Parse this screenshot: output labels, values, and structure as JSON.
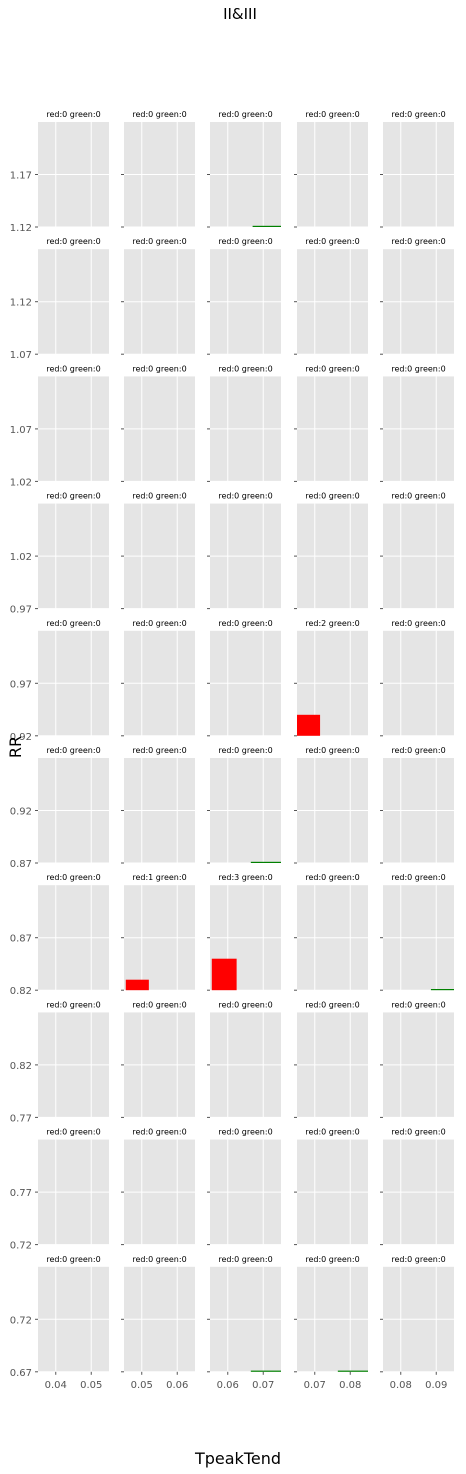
{
  "figure": {
    "suptitle": "II&III",
    "xlabel": "TpeakTend",
    "ylabel": "RR"
  },
  "colors": {
    "panel_bg": "#e5e5e5",
    "grid": "#ffffff",
    "tick_text": "#555555",
    "red": "#ff0000",
    "green": "#008000"
  },
  "chart_data": {
    "type": "bar",
    "layout": {
      "rows": 10,
      "cols": 5
    },
    "grid": true,
    "columns": [
      {
        "xlim": [
          0.035,
          0.055
        ],
        "xticks": [
          0.04,
          0.05
        ],
        "xticklabels": [
          "0.04",
          "0.05"
        ]
      },
      {
        "xlim": [
          0.045,
          0.065
        ],
        "xticks": [
          0.05,
          0.06
        ],
        "xticklabels": [
          "0.05",
          "0.06"
        ]
      },
      {
        "xlim": [
          0.055,
          0.075
        ],
        "xticks": [
          0.06,
          0.07
        ],
        "xticklabels": [
          "0.06",
          "0.07"
        ]
      },
      {
        "xlim": [
          0.065,
          0.085
        ],
        "xticks": [
          0.07,
          0.08
        ],
        "xticklabels": [
          "0.07",
          "0.08"
        ]
      },
      {
        "xlim": [
          0.075,
          0.095
        ],
        "xticks": [
          0.08,
          0.09
        ],
        "xticklabels": [
          "0.08",
          "0.09"
        ]
      }
    ],
    "rows": [
      {
        "ylim": [
          1.12,
          1.22
        ],
        "yticks": [
          1.12,
          1.17
        ],
        "yticklabels": [
          "1.12",
          "1.17"
        ]
      },
      {
        "ylim": [
          1.07,
          1.17
        ],
        "yticks": [
          1.07,
          1.12
        ],
        "yticklabels": [
          "1.07",
          "1.12"
        ]
      },
      {
        "ylim": [
          1.02,
          1.12
        ],
        "yticks": [
          1.02,
          1.07
        ],
        "yticklabels": [
          "1.02",
          "1.07"
        ]
      },
      {
        "ylim": [
          0.97,
          1.07
        ],
        "yticks": [
          0.97,
          1.02
        ],
        "yticklabels": [
          "0.97",
          "1.02"
        ]
      },
      {
        "ylim": [
          0.92,
          1.02
        ],
        "yticks": [
          0.92,
          0.97
        ],
        "yticklabels": [
          "0.92",
          "0.97"
        ]
      },
      {
        "ylim": [
          0.87,
          0.97
        ],
        "yticks": [
          0.87,
          0.92
        ],
        "yticklabels": [
          "0.87",
          "0.92"
        ]
      },
      {
        "ylim": [
          0.82,
          0.92
        ],
        "yticks": [
          0.82,
          0.87
        ],
        "yticklabels": [
          "0.82",
          "0.87"
        ]
      },
      {
        "ylim": [
          0.77,
          0.87
        ],
        "yticks": [
          0.77,
          0.82
        ],
        "yticklabels": [
          "0.77",
          "0.82"
        ]
      },
      {
        "ylim": [
          0.72,
          0.82
        ],
        "yticks": [
          0.72,
          0.77
        ],
        "yticklabels": [
          "0.72",
          "0.77"
        ]
      },
      {
        "ylim": [
          0.67,
          0.77
        ],
        "yticks": [
          0.67,
          0.72
        ],
        "yticklabels": [
          "0.67",
          "0.72"
        ]
      }
    ],
    "panels": [
      [
        {
          "title": "red:0 green:0"
        },
        {
          "title": "red:0 green:0"
        },
        {
          "title": "red:0 green:0",
          "green_bar": {
            "x0": 0.067,
            "x1": 0.075,
            "y0": 1.12,
            "y1": 1.121
          }
        },
        {
          "title": "red:0 green:0"
        },
        {
          "title": "red:0 green:0"
        }
      ],
      [
        {
          "title": "red:0 green:0"
        },
        {
          "title": "red:0 green:0"
        },
        {
          "title": "red:0 green:0"
        },
        {
          "title": "red:0 green:0"
        },
        {
          "title": "red:0 green:0"
        }
      ],
      [
        {
          "title": "red:0 green:0"
        },
        {
          "title": "red:0 green:0"
        },
        {
          "title": "red:0 green:0"
        },
        {
          "title": "red:0 green:0"
        },
        {
          "title": "red:0 green:0"
        }
      ],
      [
        {
          "title": "red:0 green:0"
        },
        {
          "title": "red:0 green:0"
        },
        {
          "title": "red:0 green:0"
        },
        {
          "title": "red:0 green:0"
        },
        {
          "title": "red:0 green:0"
        }
      ],
      [
        {
          "title": "red:0 green:0"
        },
        {
          "title": "red:0 green:0"
        },
        {
          "title": "red:0 green:0"
        },
        {
          "title": "red:2 green:0",
          "red_bar": {
            "x0": 0.065,
            "x1": 0.0715,
            "y0": 0.92,
            "y1": 0.94
          }
        },
        {
          "title": "red:0 green:0"
        }
      ],
      [
        {
          "title": "red:0 green:0"
        },
        {
          "title": "red:0 green:0"
        },
        {
          "title": "red:0 green:0",
          "green_bar": {
            "x0": 0.0665,
            "x1": 0.075,
            "y0": 0.87,
            "y1": 0.871
          }
        },
        {
          "title": "red:0 green:0"
        },
        {
          "title": "red:0 green:0"
        }
      ],
      [
        {
          "title": "red:0 green:0"
        },
        {
          "title": "red:1 green:0",
          "red_bar": {
            "x0": 0.0455,
            "x1": 0.052,
            "y0": 0.82,
            "y1": 0.83
          }
        },
        {
          "title": "red:3 green:0",
          "red_bar": {
            "x0": 0.0555,
            "x1": 0.0625,
            "y0": 0.82,
            "y1": 0.85
          }
        },
        {
          "title": "red:0 green:0"
        },
        {
          "title": "red:0 green:0",
          "green_bar": {
            "x0": 0.0885,
            "x1": 0.095,
            "y0": 0.82,
            "y1": 0.821
          }
        }
      ],
      [
        {
          "title": "red:0 green:0"
        },
        {
          "title": "red:0 green:0"
        },
        {
          "title": "red:0 green:0"
        },
        {
          "title": "red:0 green:0"
        },
        {
          "title": "red:0 green:0"
        }
      ],
      [
        {
          "title": "red:0 green:0"
        },
        {
          "title": "red:0 green:0"
        },
        {
          "title": "red:0 green:0"
        },
        {
          "title": "red:0 green:0"
        },
        {
          "title": "red:0 green:0"
        }
      ],
      [
        {
          "title": "red:0 green:0"
        },
        {
          "title": "red:0 green:0"
        },
        {
          "title": "red:0 green:0",
          "green_bar": {
            "x0": 0.0665,
            "x1": 0.075,
            "y0": 0.67,
            "y1": 0.671
          }
        },
        {
          "title": "red:0 green:0",
          "green_bar": {
            "x0": 0.0765,
            "x1": 0.085,
            "y0": 0.67,
            "y1": 0.671
          }
        },
        {
          "title": "red:0 green:0"
        }
      ]
    ]
  }
}
